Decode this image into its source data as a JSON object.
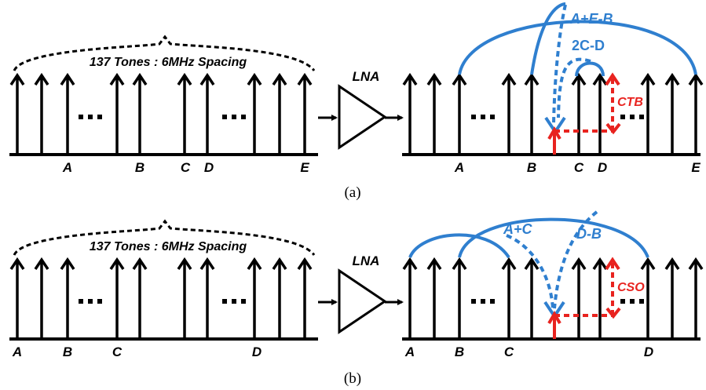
{
  "panels": [
    {
      "id": "a",
      "caption": "(a)",
      "input_span_label": "137 Tones : 6MHz Spacing",
      "amplifier_label": "LNA",
      "input_tone_labels": [
        "A",
        "B",
        "C",
        "D",
        "E"
      ],
      "output_tone_labels": [
        "A",
        "B",
        "C",
        "D",
        "E"
      ],
      "product_labels": [
        "A+E-B",
        "2C-D"
      ],
      "distortion_label": "CTB"
    },
    {
      "id": "b",
      "caption": "(b)",
      "input_span_label": "137 Tones : 6MHz Spacing",
      "amplifier_label": "LNA",
      "input_tone_labels": [
        "A",
        "B",
        "C",
        "D"
      ],
      "output_tone_labels": [
        "A",
        "B",
        "C",
        "D"
      ],
      "product_labels": [
        "A+C",
        "D-B"
      ],
      "distortion_label": "CSO"
    }
  ],
  "colors": {
    "tone": "#000000",
    "product": "#2f7fcf",
    "distortion": "#e8231f"
  }
}
